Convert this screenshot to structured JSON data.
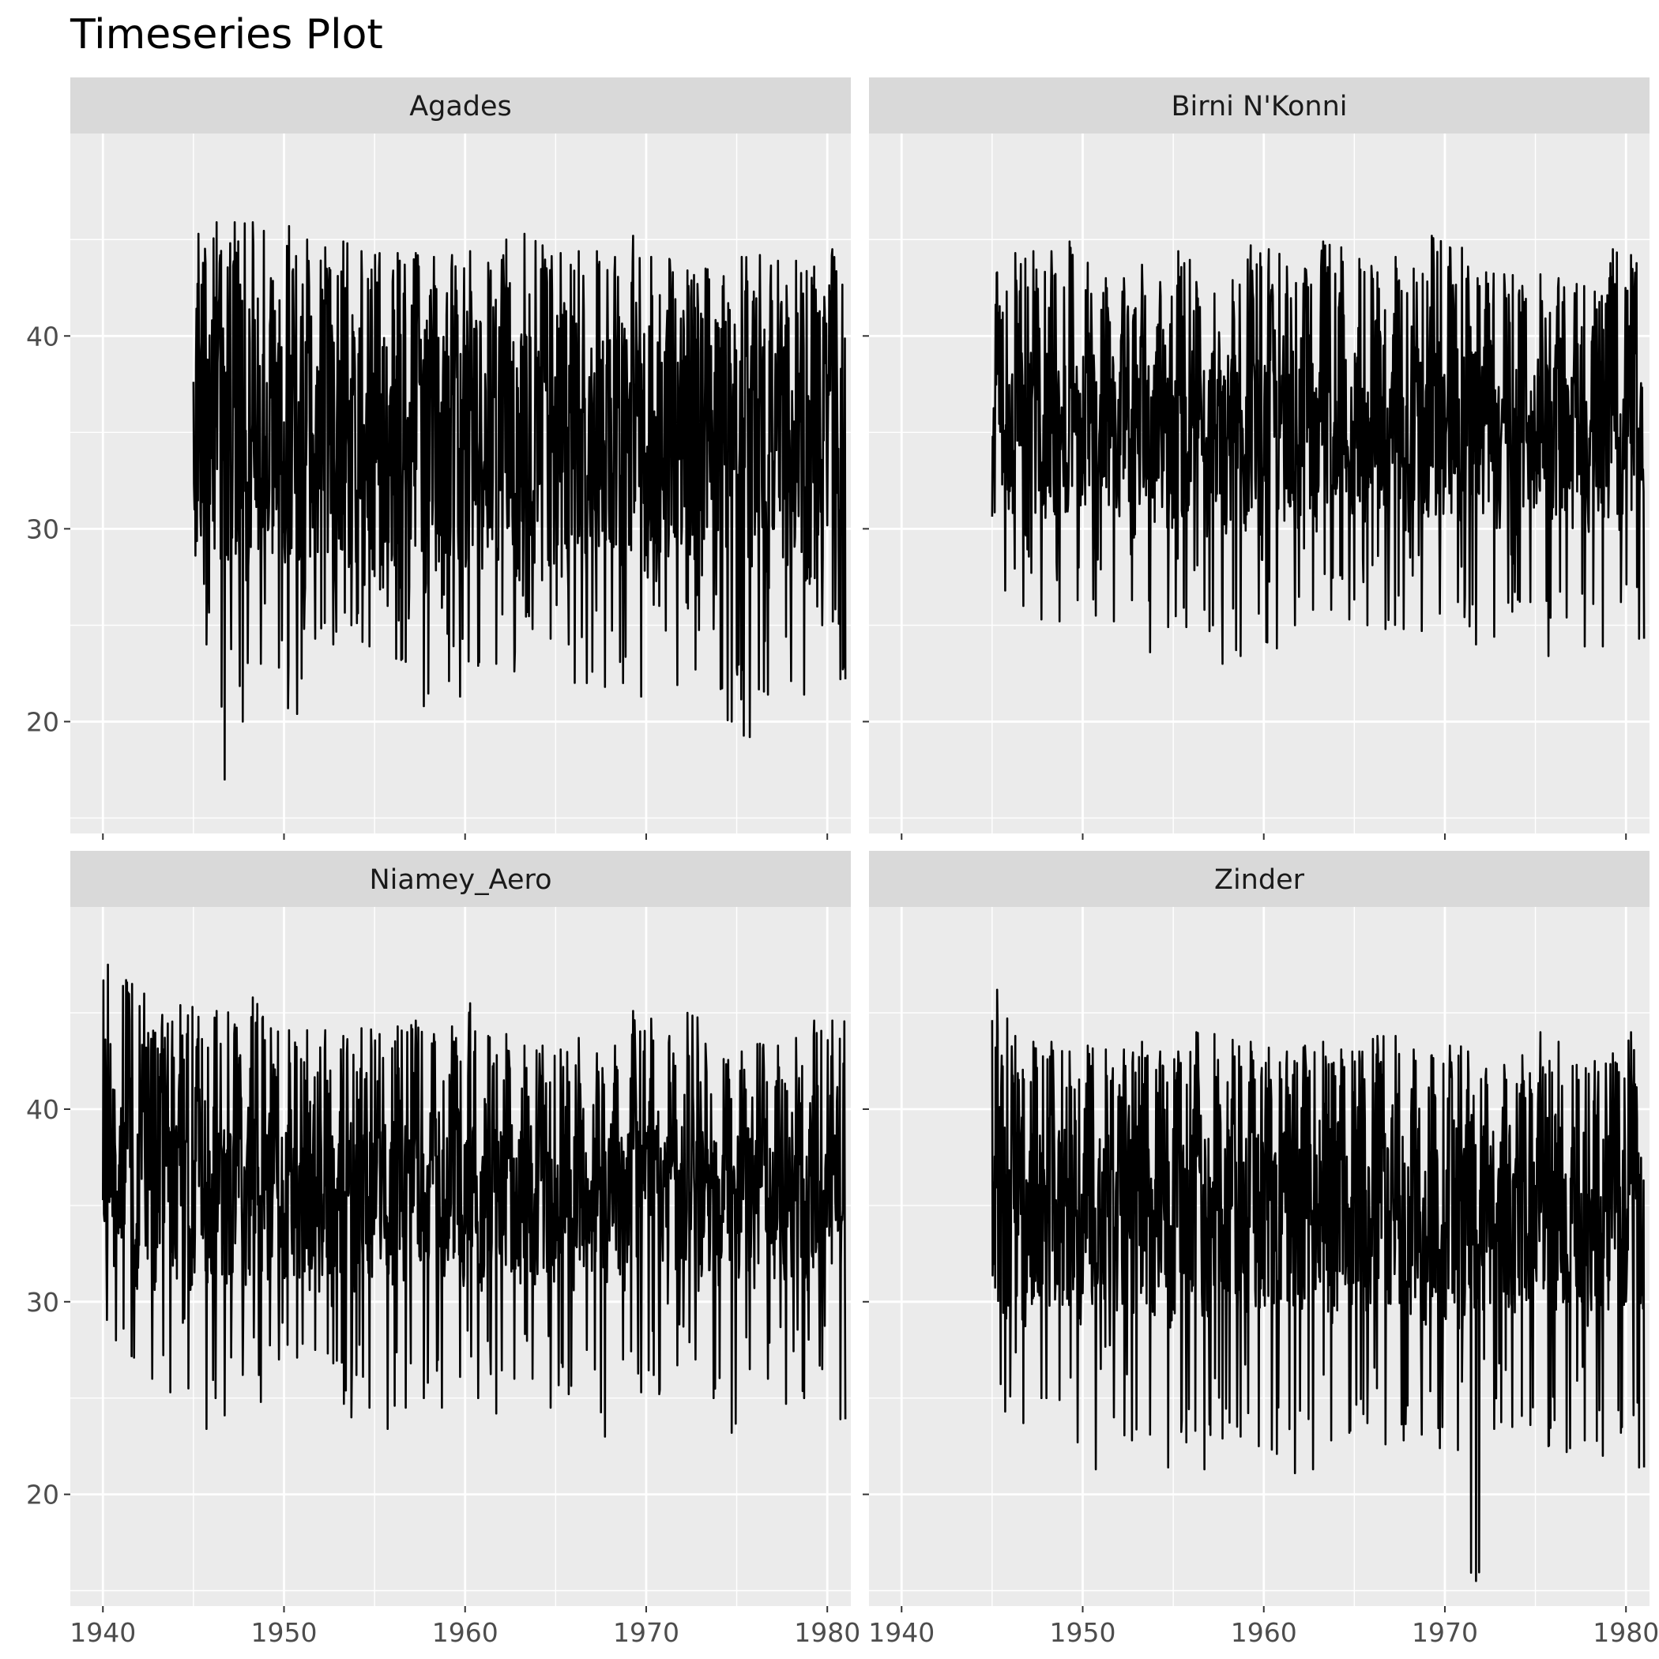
{
  "chart_data": {
    "type": "line",
    "title": "Timeseries Plot",
    "xlabel": "",
    "ylabel": "",
    "facet_layout": "2x2",
    "xlim": [
      1938.2,
      1981.3
    ],
    "ylim": [
      14.2,
      50.5
    ],
    "x_ticks": [
      1940,
      1950,
      1960,
      1970,
      1980
    ],
    "y_ticks": [
      20,
      30,
      40
    ],
    "grid": true,
    "colors": {
      "panel_background": "#ebebeb",
      "strip_background": "#d9d9d9",
      "grid": "#ffffff",
      "line": "#000000"
    },
    "panels": [
      {
        "name": "Agades",
        "start_year": 1945.0,
        "end_year": 1981.0,
        "annual_peaks": [
          45.3,
          45.9,
          45.9,
          45.9,
          43.0,
          45.7,
          45.0,
          44.6,
          44.9,
          44.4,
          44.3,
          44.3,
          44.3,
          44.1,
          44.2,
          44.4,
          43.8,
          45.0,
          45.3,
          44.7,
          44.3,
          44.4,
          44.4,
          44.1,
          45.2,
          44.1,
          44.0,
          43.4,
          43.5,
          43.1,
          44.1,
          44.2,
          43.9,
          43.9,
          43.6,
          44.5
        ],
        "annual_troughs": [
          24.0,
          17.0,
          20.0,
          23.0,
          22.8,
          20.4,
          24.3,
          24.0,
          25.0,
          23.9,
          26.0,
          23.1,
          20.8,
          25.9,
          21.3,
          22.9,
          23.0,
          22.6,
          24.8,
          24.3,
          24.0,
          22.0,
          21.8,
          22.0,
          21.3,
          26.0,
          21.9,
          22.7,
          24.8,
          20.0,
          19.2,
          21.4,
          24.4,
          21.4,
          25.0,
          22.2
        ],
        "baseline_low": 26.5,
        "baseline_high": 41.0,
        "last_point": 22.2
      },
      {
        "name": "Birni N'Konni",
        "start_year": 1945.0,
        "end_year": 1981.0,
        "annual_peaks": [
          43.3,
          44.3,
          44.4,
          44.4,
          44.9,
          43.8,
          43.0,
          43.0,
          43.7,
          42.8,
          44.4,
          42.8,
          42.2,
          42.9,
          44.7,
          44.5,
          43.6,
          43.5,
          44.9,
          44.6,
          44.0,
          43.3,
          44.1,
          43.5,
          45.2,
          44.6,
          43.6,
          43.3,
          43.2,
          42.6,
          43.2,
          43.0,
          42.7,
          42.3,
          44.5,
          44.2
        ],
        "annual_troughs": [
          26.8,
          26.0,
          25.3,
          25.2,
          26.3,
          25.5,
          25.2,
          26.3,
          23.6,
          24.9,
          24.9,
          25.8,
          23.0,
          23.4,
          25.6,
          23.8,
          25.0,
          25.8,
          25.8,
          25.3,
          25.0,
          24.8,
          24.8,
          24.7,
          25.6,
          26.2,
          24.0,
          24.4,
          25.7,
          26.2,
          23.4,
          25.4,
          23.9,
          23.9,
          26.2,
          24.3
        ],
        "baseline_low": 29.5,
        "baseline_high": 38.0,
        "last_point": 24.3
      },
      {
        "name": "Niamey_Aero",
        "start_year": 1940.0,
        "end_year": 1981.0,
        "annual_peaks": [
          47.5,
          46.7,
          46.0,
          44.9,
          45.4,
          44.8,
          45.1,
          44.4,
          45.8,
          44.2,
          44.1,
          44.1,
          44.1,
          43.8,
          44.2,
          43.9,
          44.3,
          44.6,
          43.9,
          44.3,
          45.5,
          43.8,
          43.9,
          43.3,
          43.3,
          43.1,
          43.7,
          42.9,
          43.3,
          45.1,
          44.7,
          43.8,
          45.0,
          43.4,
          42.6,
          43.0,
          43.4,
          43.3,
          43.7,
          44.6,
          44.6
        ],
        "annual_troughs": [
          28.0,
          27.1,
          26.0,
          25.3,
          25.5,
          23.4,
          24.1,
          26.2,
          24.8,
          27.0,
          27.1,
          27.5,
          26.8,
          24.0,
          24.5,
          23.4,
          24.5,
          25.0,
          24.5,
          26.1,
          25.0,
          24.2,
          26.0,
          26.0,
          24.5,
          25.2,
          27.5,
          23.0,
          27.0,
          25.3,
          25.2,
          26.7,
          27.0,
          25.0,
          23.2,
          26.5,
          26.0,
          24.7,
          25.0,
          26.5,
          23.9
        ],
        "baseline_low": 30.5,
        "baseline_high": 38.5,
        "last_point": 23.9
      },
      {
        "name": "Zinder",
        "start_year": 1945.0,
        "end_year": 1981.0,
        "annual_peaks": [
          46.2,
          43.8,
          43.5,
          43.5,
          43.0,
          43.3,
          43.1,
          43.1,
          43.5,
          43.0,
          43.0,
          44.0,
          43.9,
          43.6,
          43.5,
          43.2,
          43.0,
          43.3,
          43.5,
          43.1,
          43.0,
          43.8,
          43.8,
          43.1,
          42.8,
          43.3,
          43.0,
          42.1,
          42.3,
          42.8,
          44.0,
          43.5,
          42.3,
          42.5,
          42.9,
          44.0
        ],
        "annual_troughs": [
          24.3,
          23.7,
          25.0,
          24.9,
          22.7,
          21.3,
          24.0,
          22.8,
          23.1,
          21.4,
          22.7,
          21.3,
          22.9,
          23.0,
          22.5,
          22.1,
          21.1,
          21.3,
          22.8,
          23.2,
          23.7,
          22.6,
          22.8,
          23.1,
          22.4,
          22.3,
          15.5,
          23.4,
          23.5,
          23.6,
          22.5,
          22.2,
          22.8,
          22.0,
          23.2,
          21.4
        ],
        "baseline_low": 28.5,
        "baseline_high": 38.0,
        "last_point": 21.4
      }
    ]
  }
}
